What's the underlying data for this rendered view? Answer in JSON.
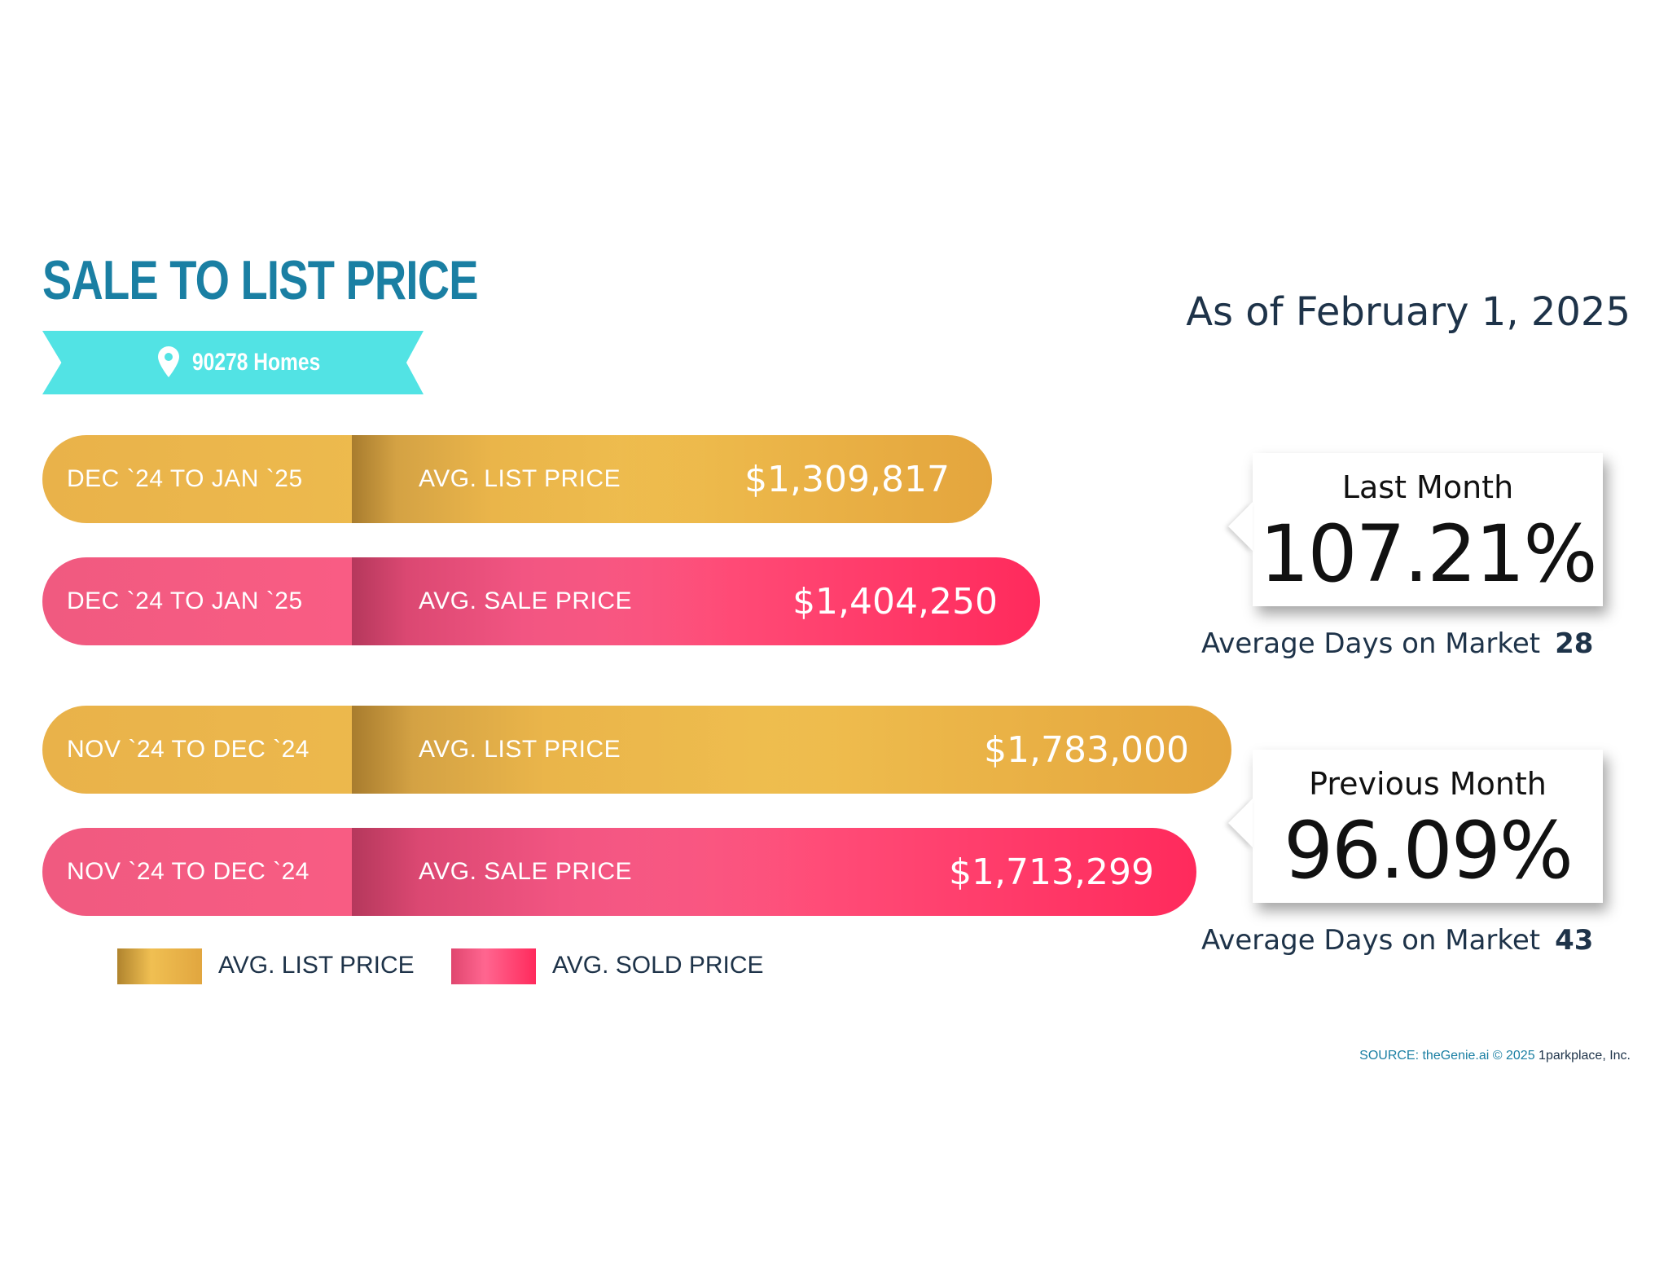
{
  "title": "SALE TO LIST PRICE",
  "location": "90278 Homes",
  "as_of": "As of February 1, 2025",
  "colors": {
    "list": "#eab54a",
    "sale": "#ff4f7b",
    "title": "#1a7fa3",
    "ribbon": "#52e3e4"
  },
  "chart_data": {
    "type": "bar",
    "orientation": "horizontal",
    "categories": [
      "DEC `24 TO JAN `25",
      "NOV `24 TO DEC `24"
    ],
    "series": [
      {
        "name": "AVG. LIST PRICE",
        "values": [
          1309817,
          1783000
        ]
      },
      {
        "name": "AVG. SOLD PRICE",
        "values": [
          1404250,
          1713299
        ]
      }
    ]
  },
  "bars": [
    {
      "period": "DEC `24 TO JAN `25",
      "label": "AVG. LIST PRICE",
      "value_text": "$1,309,817"
    },
    {
      "period": "DEC `24 TO JAN `25",
      "label": "AVG. SALE PRICE",
      "value_text": "$1,404,250"
    },
    {
      "period": "NOV `24 TO DEC `24",
      "label": "AVG. LIST PRICE",
      "value_text": "$1,783,000"
    },
    {
      "period": "NOV `24 TO DEC `24",
      "label": "AVG. SALE PRICE",
      "value_text": "$1,713,299"
    }
  ],
  "legend": {
    "list": "AVG. LIST PRICE",
    "sold": "AVG. SOLD PRICE"
  },
  "callouts": [
    {
      "title": "Last Month",
      "value": "107.21%",
      "dom_label": "Average Days on Market",
      "dom_value": "28"
    },
    {
      "title": "Previous Month",
      "value": "96.09%",
      "dom_label": "Average Days on Market",
      "dom_value": "43"
    }
  ],
  "source": {
    "prefix": "SOURCE: theGenie.ai © 2025 ",
    "company": "1parkplace, Inc."
  }
}
